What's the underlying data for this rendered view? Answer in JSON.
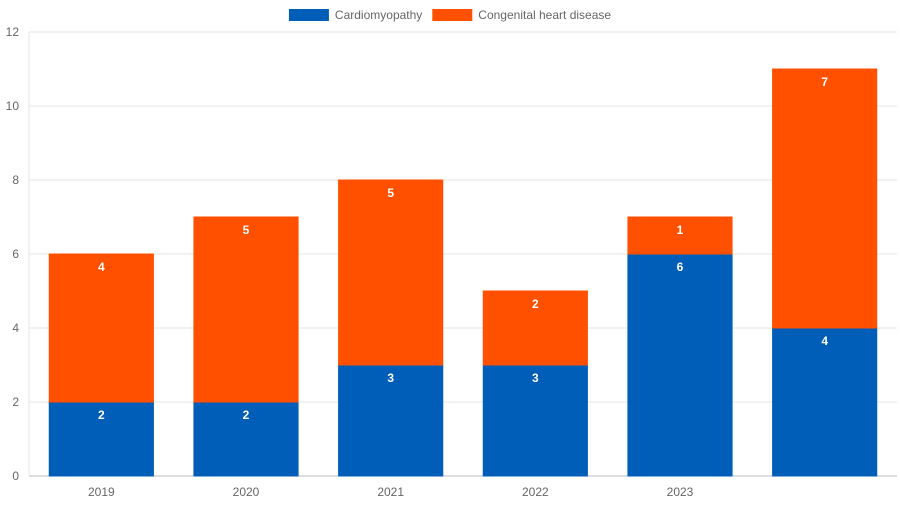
{
  "chart_data": {
    "type": "bar",
    "stacked": true,
    "categories": [
      "2019",
      "2020",
      "2021",
      "2022",
      "2023",
      ""
    ],
    "series": [
      {
        "name": "Cardiomyopathy",
        "values": [
          2,
          2,
          3,
          3,
          6,
          4
        ],
        "color": "#005eb8"
      },
      {
        "name": "Congenital heart disease",
        "values": [
          4,
          5,
          5,
          2,
          1,
          7
        ],
        "color": "#ff5000"
      }
    ],
    "title": "",
    "xlabel": "",
    "ylabel": "",
    "ylim": [
      0,
      12
    ],
    "yticks": [
      "0",
      "2",
      "4",
      "6",
      "8",
      "10",
      "12"
    ],
    "grid": true,
    "legend_position": "top"
  }
}
